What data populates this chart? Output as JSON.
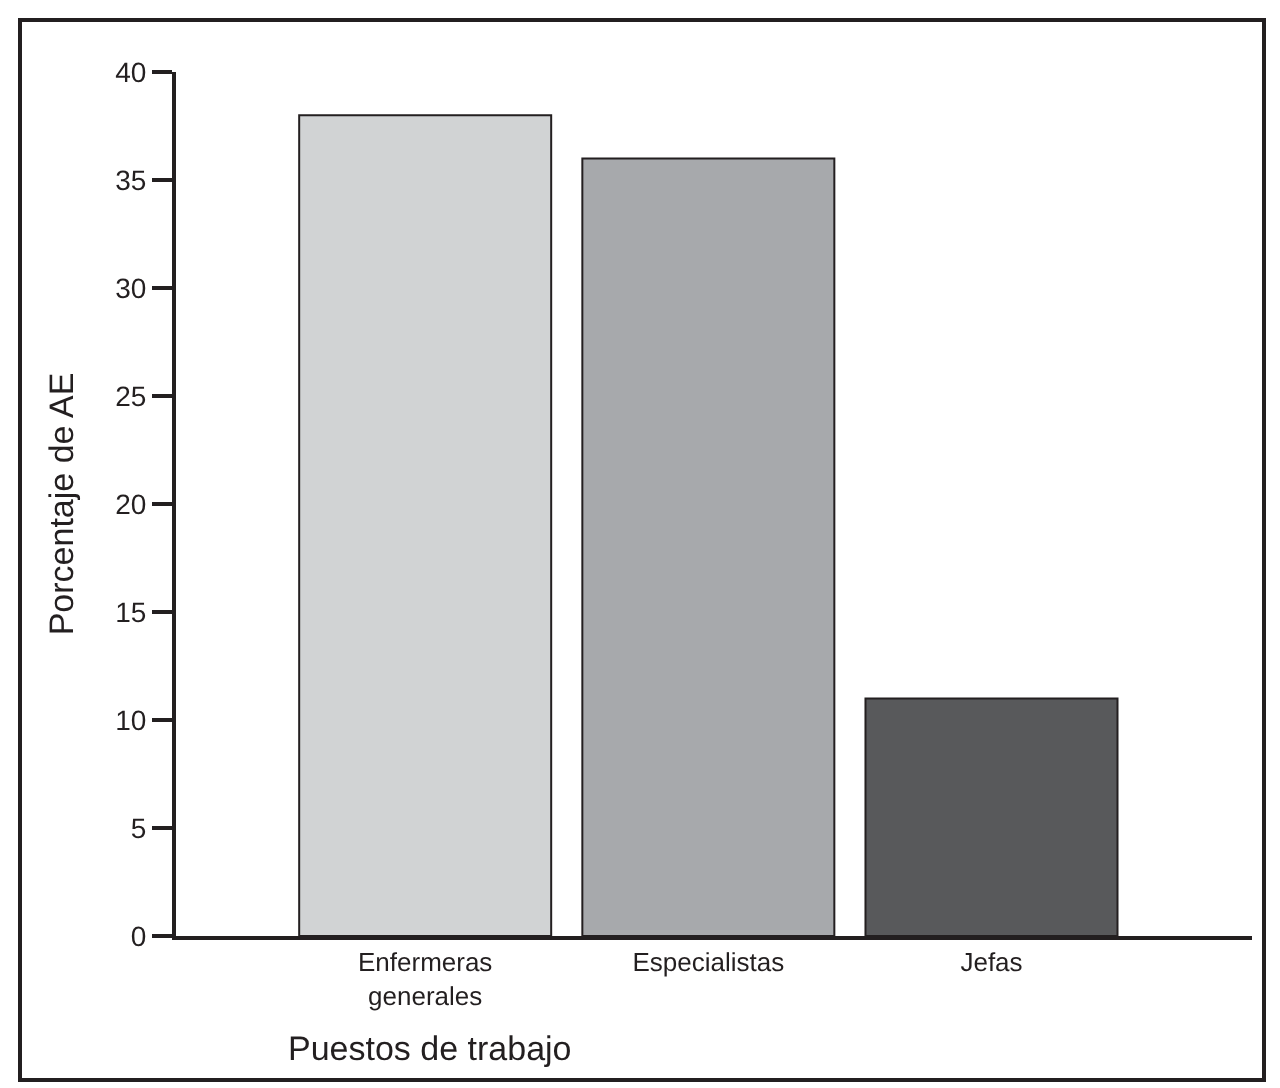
{
  "chart_data": {
    "type": "bar",
    "xlabel": "Puestos de trabajo",
    "ylabel": "Porcentaje de AE",
    "categories": [
      "Enfermeras\ngenerales",
      "Especialistas",
      "Jefas"
    ],
    "values": [
      38,
      36,
      11
    ],
    "colors": [
      "#d1d3d4",
      "#a7a9ac",
      "#58595b"
    ],
    "ylim": [
      0,
      40
    ],
    "yticks": [
      0,
      5,
      10,
      15,
      20,
      25,
      30,
      35,
      40
    ],
    "grid": false
  }
}
